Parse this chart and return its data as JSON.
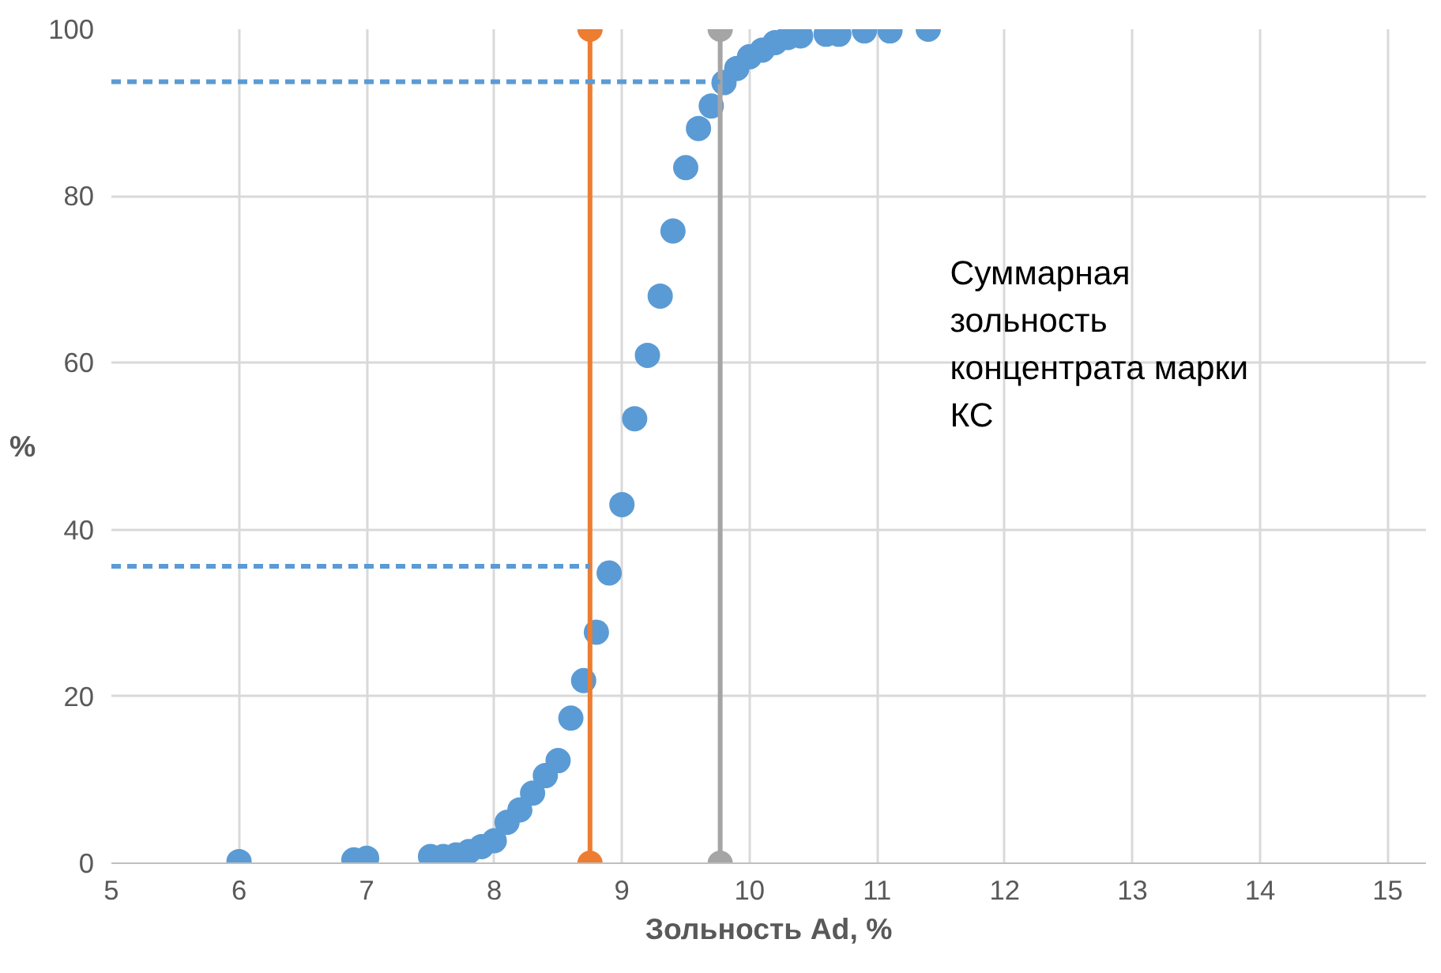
{
  "chart_data": {
    "type": "scatter",
    "xlabel": "Зольность Ad, %",
    "ylabel": "%",
    "xlim": [
      5,
      15.3
    ],
    "ylim": [
      0,
      100
    ],
    "xticks": [
      5,
      6,
      7,
      8,
      9,
      10,
      11,
      12,
      13,
      14,
      15
    ],
    "yticks": [
      0,
      20,
      40,
      60,
      80,
      100
    ],
    "grid": true,
    "annotations": [
      "Суммарная\nзольность\nконцентрата марки\nКС"
    ],
    "series": [
      {
        "marker": "circle",
        "color": "#5b9bd5",
        "x": [
          6.0,
          6.9,
          7.0,
          7.5,
          7.6,
          7.7,
          7.8,
          7.9,
          8.0,
          8.1,
          8.2,
          8.3,
          8.4,
          8.5,
          8.6,
          8.7,
          8.8,
          8.9,
          9.0,
          9.1,
          9.2,
          9.3,
          9.4,
          9.5,
          9.6,
          9.7,
          9.8,
          9.9,
          10.0,
          10.1,
          10.2,
          10.3,
          10.4,
          10.6,
          10.7,
          10.9,
          11.1,
          11.4
        ],
        "values": [
          0.2,
          0.4,
          0.6,
          0.8,
          0.8,
          1.0,
          1.4,
          2.0,
          2.7,
          4.9,
          6.4,
          8.4,
          10.5,
          12.3,
          17.4,
          21.9,
          27.7,
          34.8,
          43.0,
          53.3,
          60.9,
          68.0,
          75.8,
          83.4,
          88.1,
          90.8,
          93.6,
          95.3,
          96.7,
          97.5,
          98.4,
          99.0,
          99.2,
          99.4,
          99.4,
          99.8,
          99.8,
          100
        ]
      },
      {
        "type": "line",
        "marker": "circle",
        "line_style": "solid",
        "color": "#ed7d31",
        "x": [
          8.75,
          8.75
        ],
        "values": [
          0,
          100
        ]
      },
      {
        "type": "line",
        "marker": "circle",
        "line_style": "solid",
        "color": "#a5a5a5",
        "x": [
          9.77,
          9.77
        ],
        "values": [
          0,
          100
        ]
      },
      {
        "type": "line",
        "marker": "none",
        "line_style": "dashed",
        "color": "#5b9bd5",
        "x": [
          5,
          9.77
        ],
        "values": [
          93.7,
          93.7
        ]
      },
      {
        "type": "line",
        "marker": "none",
        "line_style": "dashed",
        "color": "#5b9bd5",
        "x": [
          5,
          8.75
        ],
        "values": [
          35.6,
          35.6
        ]
      }
    ]
  }
}
